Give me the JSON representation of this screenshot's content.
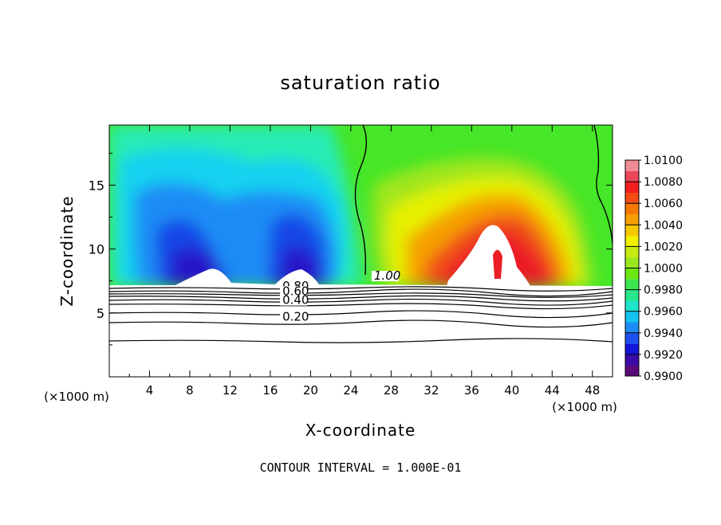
{
  "chart_data": {
    "type": "heatmap",
    "title": "saturation ratio",
    "xlabel": "X-coordinate",
    "ylabel": "Z-coordinate",
    "x_unit": "(×1000 m)",
    "y_unit": "(×1000 m)",
    "xlim": [
      0,
      50
    ],
    "ylim": [
      0,
      19.7
    ],
    "x_ticks": [
      4,
      8,
      12,
      16,
      20,
      24,
      28,
      32,
      36,
      40,
      44,
      48
    ],
    "y_ticks": [
      5,
      10,
      15
    ],
    "colorbar": {
      "min": 0.99,
      "max": 1.01,
      "labels": [
        "1.0100",
        "1.0080",
        "1.0060",
        "1.0040",
        "1.0020",
        "1.0000",
        "0.9980",
        "0.9960",
        "0.9940",
        "0.9920",
        "0.9900"
      ],
      "colors": [
        "#5a0a78",
        "#3a0aa8",
        "#1414d8",
        "#1e50f0",
        "#1e8cf5",
        "#14c3f0",
        "#1ee6cd",
        "#28e68c",
        "#3ce650",
        "#6ee614",
        "#9be61e",
        "#c8eb14",
        "#f0f000",
        "#f5c800",
        "#f5a000",
        "#f57800",
        "#f54b14",
        "#f01e1e",
        "#eb465a",
        "#f08c96"
      ]
    },
    "contour_labels": [
      {
        "text": "1.00",
        "x": 26.3,
        "y": 7.6
      },
      {
        "text": "0.80",
        "x": 17.2,
        "y": 6.8
      },
      {
        "text": "0.60",
        "x": 17.2,
        "y": 6.4
      },
      {
        "text": "0.40",
        "x": 17.2,
        "y": 5.7
      },
      {
        "text": "0.20",
        "x": 17.2,
        "y": 4.4
      }
    ],
    "annotation": "CONTOUR INTERVAL = 1.000E-01"
  }
}
